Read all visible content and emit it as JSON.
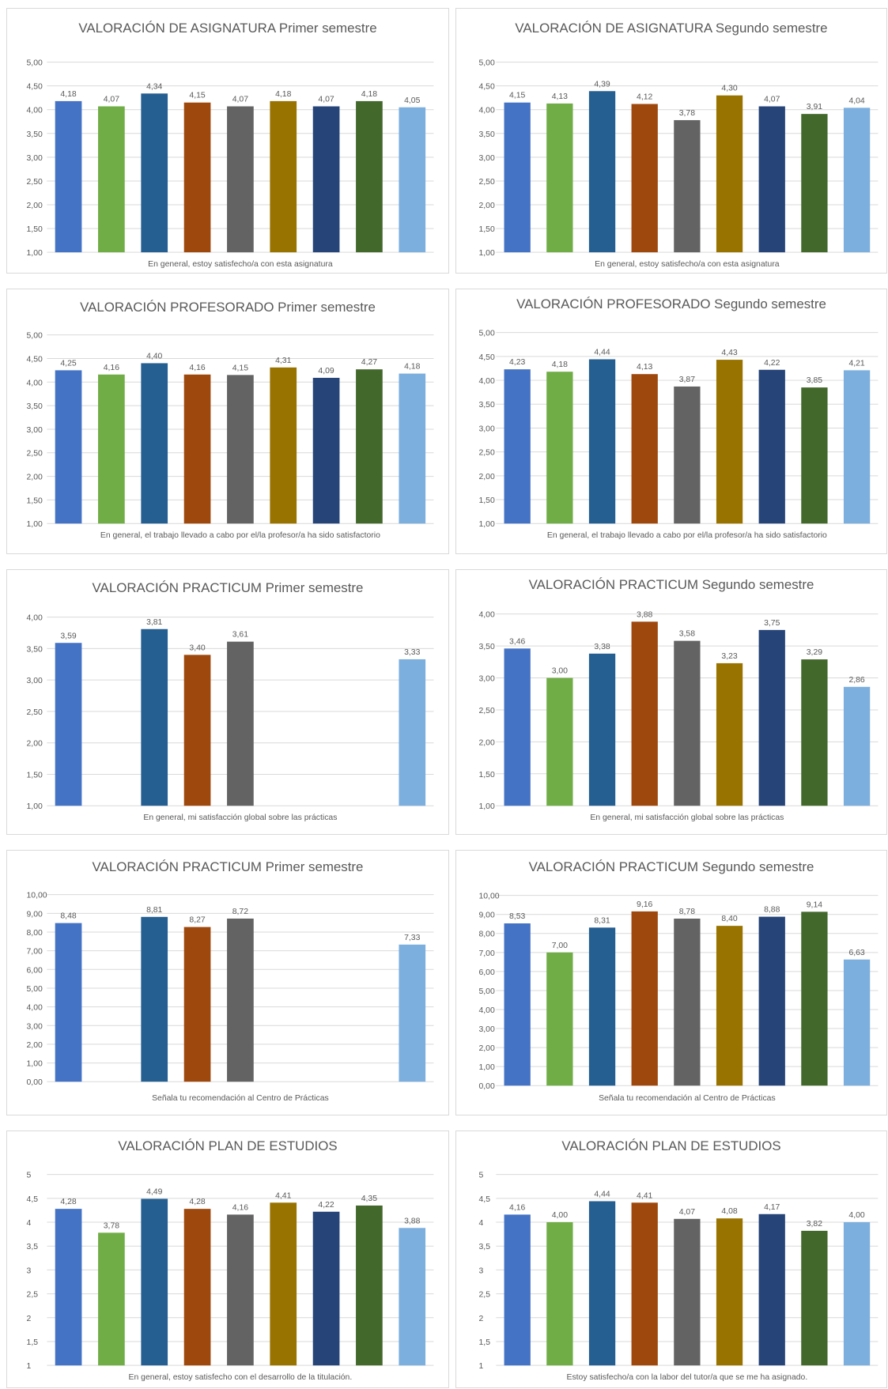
{
  "colors": [
    "#4472C4",
    "#70AD47",
    "#255E91",
    "#9E480E",
    "#636363",
    "#997300",
    "#264478",
    "#43682B",
    "#7CAFDD"
  ],
  "chart_data": [
    {
      "type": "bar",
      "title": "VALORACIÓN DE ASIGNATURA Primer semestre",
      "xlabel": "En general, estoy satisfecho/a con esta asignatura",
      "ylim": [
        1,
        5
      ],
      "ystep": 0.5,
      "tick_decimals": 2,
      "values": [
        4.18,
        4.07,
        4.34,
        4.15,
        4.07,
        4.18,
        4.07,
        4.18,
        4.05
      ],
      "labels": [
        "4,18",
        "4,07",
        "4,34",
        "4,15",
        "4,07",
        "4,18",
        "4,07",
        "4,18",
        "4,05"
      ]
    },
    {
      "type": "bar",
      "title": "VALORACIÓN DE ASIGNATURA Segundo semestre",
      "xlabel": "En general, estoy satisfecho/a con esta asignatura",
      "ylim": [
        1,
        5
      ],
      "ystep": 0.5,
      "tick_decimals": 2,
      "values": [
        4.15,
        4.13,
        4.39,
        4.12,
        3.78,
        4.3,
        4.07,
        3.91,
        4.04
      ],
      "labels": [
        "4,15",
        "4,13",
        "4,39",
        "4,12",
        "3,78",
        "4,30",
        "4,07",
        "3,91",
        "4,04"
      ]
    },
    {
      "type": "bar",
      "title": "VALORACIÓN  PROFESORADO Primer semestre",
      "xlabel": "En general, el trabajo llevado a cabo por el/la profesor/a ha sido satisfactorio",
      "ylim": [
        1,
        5
      ],
      "ystep": 0.5,
      "tick_decimals": 2,
      "values": [
        4.25,
        4.16,
        4.4,
        4.16,
        4.15,
        4.31,
        4.09,
        4.27,
        4.18
      ],
      "labels": [
        "4,25",
        "4,16",
        "4,40",
        "4,16",
        "4,15",
        "4,31",
        "4,09",
        "4,27",
        "4,18"
      ]
    },
    {
      "type": "bar",
      "title": "VALORACIÓN  PROFESORADO Segundo semestre",
      "xlabel": "En general, el trabajo llevado a cabo por el/la profesor/a ha sido satisfactorio",
      "ylim": [
        1,
        5
      ],
      "ystep": 0.5,
      "tick_decimals": 2,
      "values": [
        4.23,
        4.18,
        4.44,
        4.13,
        3.87,
        4.43,
        4.22,
        3.85,
        4.21
      ],
      "labels": [
        "4,23",
        "4,18",
        "4,44",
        "4,13",
        "3,87",
        "4,43",
        "4,22",
        "3,85",
        "4,21"
      ]
    },
    {
      "type": "bar",
      "title": "VALORACIÓN  PRACTICUM Primer semestre",
      "xlabel": "En general, mi satisfacción global sobre las prácticas",
      "ylim": [
        1,
        4
      ],
      "ystep": 0.5,
      "tick_decimals": 2,
      "values": [
        3.59,
        null,
        3.81,
        3.4,
        3.61,
        null,
        null,
        null,
        3.33
      ],
      "labels": [
        "3,59",
        "",
        "3,81",
        "3,40",
        "3,61",
        "",
        "",
        "",
        "3,33"
      ]
    },
    {
      "type": "bar",
      "title": "VALORACIÓN  PRACTICUM Segundo semestre",
      "xlabel": "En general, mi satisfacción global sobre las prácticas",
      "ylim": [
        1,
        4
      ],
      "ystep": 0.5,
      "tick_decimals": 2,
      "values": [
        3.46,
        3.0,
        3.38,
        3.88,
        3.58,
        3.23,
        3.75,
        3.29,
        2.86
      ],
      "labels": [
        "3,46",
        "3,00",
        "3,38",
        "3,88",
        "3,58",
        "3,23",
        "3,75",
        "3,29",
        "2,86"
      ]
    },
    {
      "type": "bar",
      "title": "VALORACIÓN  PRACTICUM Primer semestre",
      "xlabel": "Señala tu recomendación al Centro de Prácticas",
      "ylim": [
        0,
        10
      ],
      "ystep": 1,
      "tick_decimals": 2,
      "values": [
        8.48,
        null,
        8.81,
        8.27,
        8.72,
        null,
        null,
        null,
        7.33
      ],
      "labels": [
        "8,48",
        "",
        "8,81",
        "8,27",
        "8,72",
        "",
        "",
        "",
        "7,33"
      ]
    },
    {
      "type": "bar",
      "title": "VALORACIÓN  PRACTICUM Segundo semestre",
      "xlabel": "Señala tu recomendación al Centro de Prácticas",
      "ylim": [
        0,
        10
      ],
      "ystep": 1,
      "tick_decimals": 2,
      "values": [
        8.53,
        7.0,
        8.31,
        9.16,
        8.78,
        8.4,
        8.88,
        9.14,
        6.63
      ],
      "labels": [
        "8,53",
        "7,00",
        "8,31",
        "9,16",
        "8,78",
        "8,40",
        "8,88",
        "9,14",
        "6,63"
      ]
    },
    {
      "type": "bar",
      "title": "VALORACIÓN PLAN DE ESTUDIOS",
      "xlabel": "En general, estoy satisfecho con el desarrollo de la titulación.",
      "ylim": [
        1,
        5
      ],
      "ystep": 0.5,
      "tick_decimals": 0,
      "values": [
        4.28,
        3.78,
        4.49,
        4.28,
        4.16,
        4.41,
        4.22,
        4.35,
        3.88
      ],
      "labels": [
        "4,28",
        "3,78",
        "4,49",
        "4,28",
        "4,16",
        "4,41",
        "4,22",
        "4,35",
        "3,88"
      ]
    },
    {
      "type": "bar",
      "title": "VALORACIÓN PLAN DE ESTUDIOS",
      "xlabel": "Estoy satisfecho/a con la labor del tutor/a que se me ha asignado.",
      "ylim": [
        1,
        5
      ],
      "ystep": 0.5,
      "tick_decimals": 0,
      "values": [
        4.16,
        4.0,
        4.44,
        4.41,
        4.07,
        4.08,
        4.17,
        3.82,
        4.0
      ],
      "labels": [
        "4,16",
        "4,00",
        "4,44",
        "4,41",
        "4,07",
        "4,08",
        "4,17",
        "3,82",
        "4,00"
      ]
    }
  ]
}
